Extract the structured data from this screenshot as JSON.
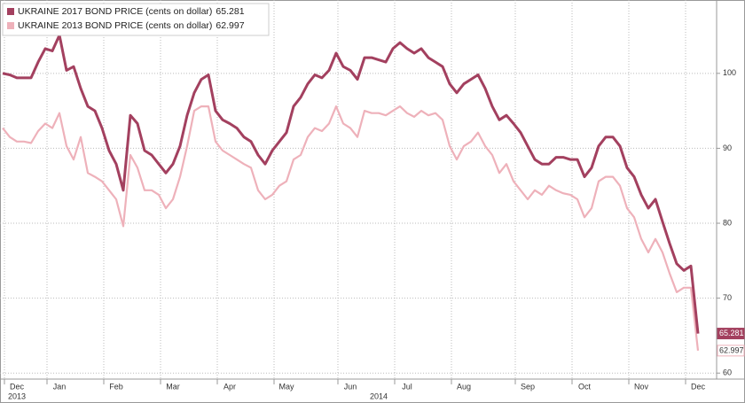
{
  "chart_data": {
    "type": "line",
    "categories": [
      null,
      null,
      "Dec",
      null,
      null,
      null,
      null,
      null,
      "Jan",
      null,
      null,
      null,
      null,
      null,
      null,
      null,
      "Feb",
      null,
      null,
      null,
      null,
      null,
      null,
      null,
      "Mar",
      null,
      null,
      null,
      null,
      null,
      null,
      null,
      "Apr",
      null,
      null,
      null,
      null,
      null,
      null,
      null,
      "May",
      null,
      null,
      null,
      null,
      null,
      null,
      null,
      null,
      "Jun",
      null,
      null,
      null,
      null,
      null,
      null,
      null,
      "Jul",
      null,
      null,
      null,
      null,
      null,
      null,
      null,
      "Aug",
      null,
      null,
      null,
      null,
      null,
      null,
      null,
      null,
      "Sep",
      null,
      null,
      null,
      null,
      null,
      null,
      null,
      "Oct",
      null,
      null,
      null,
      null,
      null,
      null,
      null,
      "Nov",
      null,
      null,
      null,
      null,
      null,
      null,
      null,
      "Dec"
    ],
    "year_labels": [
      "2013",
      "2014"
    ],
    "series": [
      {
        "name": "UKRAINE 2017 BOND PRICE (cents on dollar)",
        "color": "#a3405f",
        "values": [
          100,
          99.8,
          99.4,
          99.4,
          99.4,
          101.5,
          103.3,
          103,
          105.1,
          100.4,
          100.9,
          98,
          95.6,
          95,
          92.7,
          89.7,
          87.9,
          84.4,
          94.4,
          93.3,
          89.7,
          89.1,
          87.9,
          86.7,
          87.9,
          90.3,
          94.4,
          97.4,
          99.2,
          99.8,
          95,
          93.8,
          93.3,
          92.7,
          91.5,
          90.9,
          89.1,
          87.9,
          89.7,
          90.9,
          92.1,
          95.6,
          96.8,
          98.6,
          99.8,
          99.4,
          100.4,
          102.7,
          100.9,
          100.4,
          99.2,
          102.1,
          102.1,
          101.8,
          101.5,
          103.3,
          104.1,
          103.3,
          102.7,
          103.3,
          102.1,
          101.5,
          100.9,
          98.6,
          97.4,
          98.6,
          99.2,
          99.8,
          98,
          95.6,
          93.8,
          94.4,
          93.3,
          92.1,
          90.3,
          88.5,
          87.9,
          87.9,
          88.8,
          88.8,
          88.5,
          88.5,
          86.2,
          87.4,
          90.3,
          91.5,
          91.5,
          90.3,
          87.4,
          86.2,
          83.8,
          82,
          83.2,
          80.2,
          77.3,
          74.6,
          73.7,
          74.3,
          65.281
        ]
      },
      {
        "name": "UKRAINE 2013 BOND PRICE (cents on dollar)",
        "color": "#eeb1ba",
        "values": [
          92.7,
          91.5,
          90.9,
          90.9,
          90.7,
          92.3,
          93.3,
          92.7,
          94.7,
          90.3,
          88.5,
          91.5,
          86.7,
          86.2,
          85.6,
          84.4,
          83.2,
          79.6,
          89.1,
          87.4,
          84.4,
          84.4,
          83.8,
          82,
          83.2,
          86.2,
          90.3,
          95,
          95.6,
          95.6,
          90.9,
          89.7,
          89.1,
          88.5,
          87.9,
          87.4,
          84.4,
          83.2,
          83.8,
          85,
          85.6,
          88.5,
          89.1,
          91.5,
          92.7,
          92.3,
          93.3,
          95.6,
          93.3,
          92.7,
          91.5,
          95,
          94.7,
          94.7,
          94.4,
          95,
          95.6,
          94.7,
          94.2,
          95,
          94.4,
          94.7,
          93.8,
          90.3,
          88.5,
          90.3,
          90.9,
          92.1,
          90.3,
          89.1,
          86.7,
          87.9,
          85.6,
          84.4,
          83.2,
          84.4,
          83.8,
          85,
          84.4,
          84,
          83.8,
          83.2,
          80.8,
          82,
          85.6,
          86.2,
          86.2,
          85,
          82,
          80.8,
          77.9,
          76.1,
          77.9,
          76.1,
          73.3,
          70.8,
          71.4,
          71.4,
          62.997
        ]
      }
    ],
    "ylim": [
      59.2,
      109.2
    ],
    "yticks": [
      60,
      70,
      80,
      90,
      100
    ],
    "grid": true,
    "legend": "top-left"
  }
}
